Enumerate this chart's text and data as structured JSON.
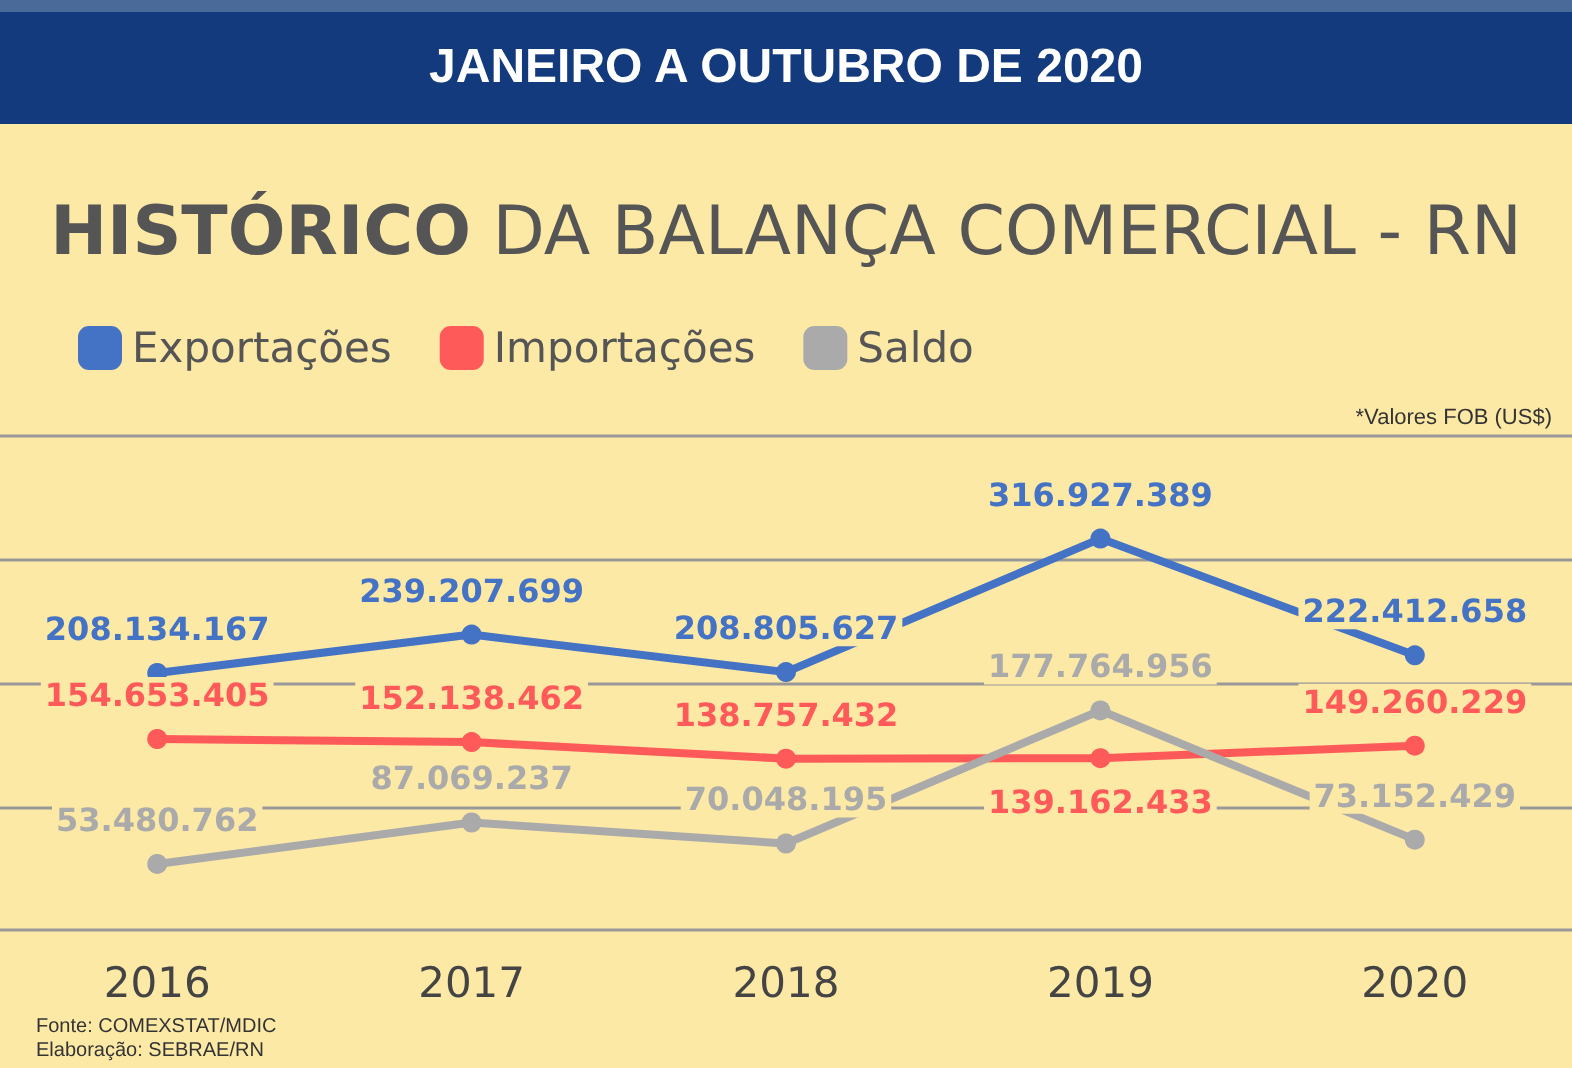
{
  "chart_data": {
    "type": "line",
    "subtitle": "JANEIRO A OUTUBRO DE 2020",
    "title": "HISTÓRICO DA BALANÇA COMERCIAL - RN",
    "categories": [
      "2016",
      "2017",
      "2018",
      "2019",
      "2020"
    ],
    "series": [
      {
        "name": "Exportações",
        "color": "#4472c4",
        "values": [
          208134167,
          239207699,
          208805627,
          316927389,
          222412658
        ],
        "value_labels": [
          "208.134.167",
          "239.207.699",
          "208.805.627",
          "316.927.389",
          "222.412.658"
        ]
      },
      {
        "name": "Importações",
        "color": "#ff5a5a",
        "values": [
          154653405,
          152138462,
          138757432,
          139162433,
          149260229
        ],
        "value_labels": [
          "154.653.405",
          "152.138.462",
          "138.757.432",
          "139.162.433",
          "149.260.229"
        ]
      },
      {
        "name": "Saldo",
        "color": "#aaaaaa",
        "values": [
          53480762,
          87069237,
          70048195,
          177764956,
          73152429
        ],
        "value_labels": [
          "53.480.762",
          "87.069.237",
          "70.048.195",
          "177.764.956",
          "73.152.429"
        ]
      }
    ],
    "ylim": [
      0,
      400000000
    ],
    "yticks": [
      {
        "value": 0,
        "label": null
      },
      {
        "value": 100000000,
        "label": null
      },
      {
        "value": 200000000,
        "label": null
      },
      {
        "value": 300000000,
        "label": null
      },
      {
        "value": 400000000,
        "label": null
      }
    ],
    "tick_labels": "x",
    "grid": "y",
    "legend": "top left",
    "marker": "circle",
    "line_style": "solid",
    "annotations": [
      "*Valores FOB (US$)",
      "Fonte: COMEXSTAT/MDIC",
      "Elaboração: SEBRAE/RN"
    ]
  }
}
